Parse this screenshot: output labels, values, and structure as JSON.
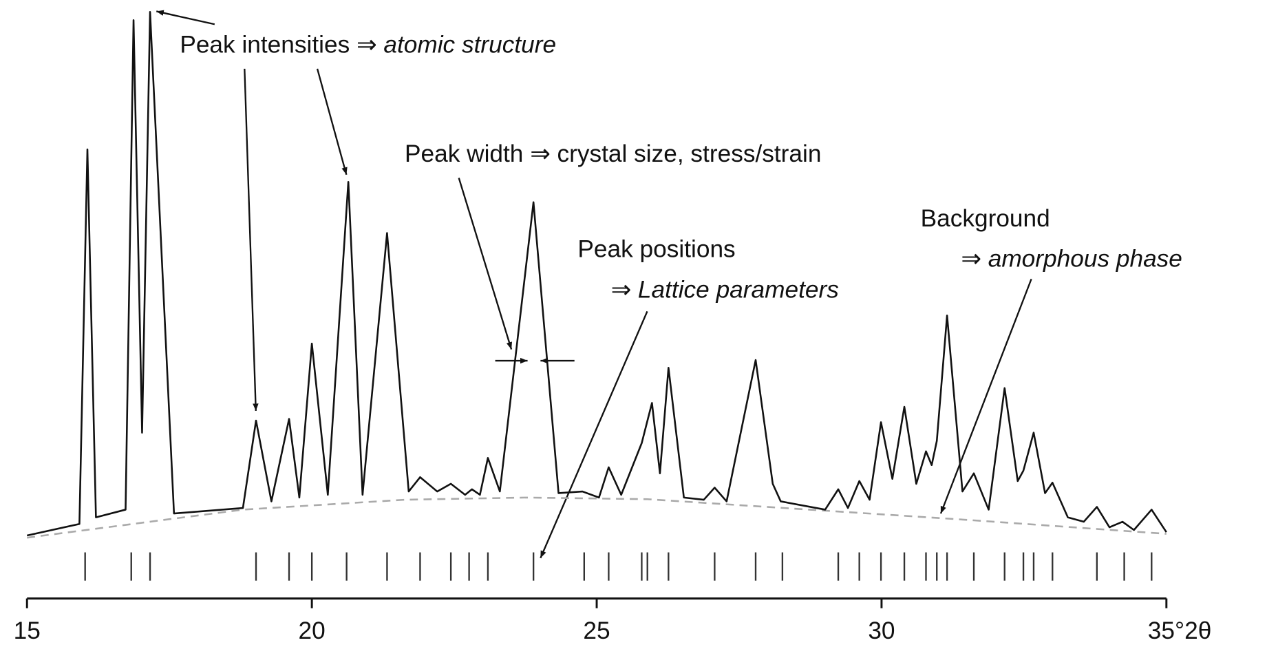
{
  "chart_data": {
    "type": "line",
    "xlim": [
      15,
      35
    ],
    "ylim": [
      0,
      100
    ],
    "xticks": [
      15,
      20,
      25,
      30,
      {
        "value": 35,
        "label": "35°2θ"
      }
    ],
    "profile": {
      "color": "#111111",
      "x": [
        15.0,
        15.92,
        16.06,
        16.21,
        16.73,
        16.87,
        17.02,
        17.16,
        17.58,
        18.79,
        19.02,
        19.29,
        19.6,
        19.78,
        20.0,
        20.28,
        20.64,
        20.89,
        21.32,
        21.7,
        21.9,
        22.2,
        22.44,
        22.69,
        22.81,
        22.95,
        23.09,
        23.3,
        23.89,
        24.33,
        24.75,
        25.04,
        25.21,
        25.43,
        25.79,
        25.97,
        26.11,
        26.26,
        26.53,
        26.88,
        27.07,
        27.28,
        27.79,
        28.09,
        28.23,
        29.01,
        29.24,
        29.41,
        29.61,
        29.79,
        29.99,
        30.19,
        30.4,
        30.61,
        30.78,
        30.88,
        30.97,
        31.15,
        31.42,
        31.62,
        31.88,
        32.16,
        32.39,
        32.49,
        32.67,
        32.87,
        33.0,
        33.27,
        33.55,
        33.78,
        34.0,
        34.23,
        34.43,
        34.74,
        35.0
      ],
      "values": [
        4.1,
        6.2,
        74.3,
        7.4,
        8.8,
        97.8,
        22.8,
        99.3,
        8.1,
        9.1,
        25.0,
        10.3,
        25.3,
        11.0,
        39.0,
        11.5,
        68.4,
        11.5,
        59.1,
        12.1,
        14.7,
        12.1,
        13.5,
        11.5,
        12.5,
        11.5,
        18.2,
        12.1,
        64.7,
        11.8,
        12.1,
        11.0,
        16.5,
        11.5,
        20.9,
        28.2,
        15.4,
        34.6,
        11.0,
        10.6,
        12.8,
        10.3,
        36.0,
        13.5,
        10.3,
        8.8,
        12.5,
        9.1,
        14.0,
        10.6,
        24.7,
        14.4,
        27.5,
        13.5,
        19.4,
        16.9,
        21.3,
        44.1,
        12.1,
        15.4,
        8.8,
        30.9,
        14.0,
        15.9,
        22.8,
        11.8,
        13.7,
        7.4,
        6.6,
        9.3,
        5.6,
        6.6,
        5.1,
        8.8,
        4.7
      ]
    },
    "background": {
      "color": "#aaaaaa",
      "dashed": true,
      "x": [
        15.0,
        18.79,
        21.63,
        23.76,
        25.89,
        28.73,
        31.56,
        35.0
      ],
      "values": [
        3.7,
        8.8,
        10.6,
        11.0,
        10.7,
        8.8,
        6.9,
        4.4
      ]
    },
    "reflections": [
      16.02,
      16.83,
      17.16,
      19.02,
      19.6,
      20.0,
      20.61,
      21.32,
      21.9,
      22.44,
      22.76,
      23.09,
      23.89,
      24.78,
      25.21,
      25.79,
      25.89,
      26.26,
      27.07,
      27.79,
      28.26,
      29.24,
      29.61,
      29.99,
      30.4,
      30.78,
      30.97,
      31.15,
      31.62,
      32.16,
      32.49,
      32.67,
      33.0,
      33.78,
      34.26,
      34.74
    ],
    "annotations": [
      {
        "text": "Peak intensities ⇒",
        "emphasis": "atomic structure"
      },
      {
        "text": "Peak width ⇒ crystal size, stress/strain"
      },
      {
        "text": "Peak positions"
      },
      {
        "text": "⇒",
        "emphasis": "Lattice parameters"
      },
      {
        "text": "Background"
      },
      {
        "text": "⇒",
        "emphasis": "amorphous phase"
      }
    ]
  }
}
